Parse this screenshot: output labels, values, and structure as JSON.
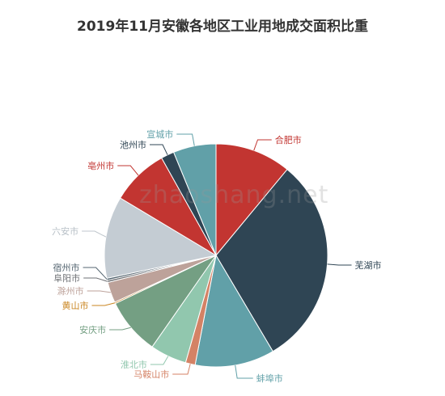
{
  "chart_data": {
    "type": "pie",
    "title": "2019年11月安徽各地区工业用地成交面积比重",
    "start_angle_deg": 90,
    "direction": "clockwise",
    "slices": [
      {
        "label": "合肥市",
        "value": 11.0,
        "color": "#c23531"
      },
      {
        "label": "芜湖市",
        "value": 30.5,
        "color": "#2f4554"
      },
      {
        "label": "蚌埠市",
        "value": 11.5,
        "color": "#61a0a8"
      },
      {
        "label": "马鞍山市",
        "value": 1.4,
        "color": "#d48265"
      },
      {
        "label": "淮北市",
        "value": 5.3,
        "color": "#91c7ae"
      },
      {
        "label": "安庆市",
        "value": 8.2,
        "color": "#749f83"
      },
      {
        "label": "黄山市",
        "value": 0.2,
        "color": "#ca8622"
      },
      {
        "label": "滁州市",
        "value": 3.0,
        "color": "#bda29a"
      },
      {
        "label": "阜阳市",
        "value": 0.3,
        "color": "#6e7074"
      },
      {
        "label": "宿州市",
        "value": 0.3,
        "color": "#546570"
      },
      {
        "label": "六安市",
        "value": 11.9,
        "color": "#c4ccd3"
      },
      {
        "label": "亳州市",
        "value": 8.3,
        "color": "#c23531"
      },
      {
        "label": "池州市",
        "value": 1.9,
        "color": "#2f4554"
      },
      {
        "label": "宣城市",
        "value": 6.2,
        "color": "#61a0a8"
      }
    ]
  },
  "watermark": "zhaoshang.net"
}
